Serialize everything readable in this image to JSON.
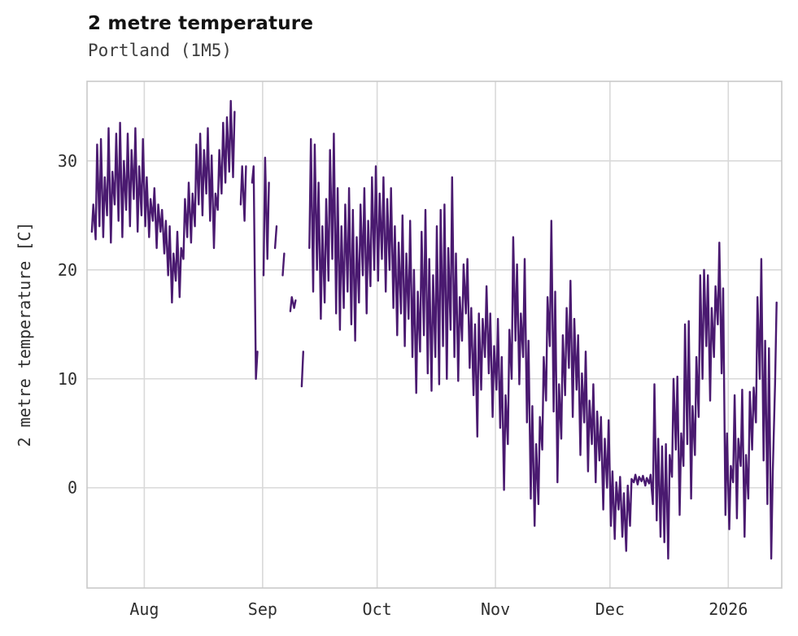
{
  "header": {
    "title": "2 metre temperature",
    "subtitle": "Portland (1M5)"
  },
  "chart_data": {
    "type": "line",
    "title": "2 metre temperature",
    "subtitle": "Portland (1M5)",
    "xlabel": "",
    "ylabel": "2 metre temperature [C]",
    "line_color": "#4a1a70",
    "grid": true,
    "legend": "none",
    "y_ticks": [
      0,
      10,
      20,
      30
    ],
    "ylim": [
      -9.2,
      37.3
    ],
    "xlim_days": [
      -1,
      181
    ],
    "x_ticks": {
      "positions_days": [
        14,
        45,
        75,
        106,
        136,
        167
      ],
      "labels": [
        "Aug",
        "Sep",
        "Oct",
        "Nov",
        "Dec",
        "2026"
      ]
    },
    "sampling": "two samples per day (daily min then daily max); index i maps to day i/2; null = data gap shown as broken line",
    "values": [
      23.5,
      26,
      22.8,
      31.5,
      24,
      32,
      23,
      28.5,
      25,
      33,
      22.5,
      29,
      26,
      32.5,
      24.5,
      33.5,
      23,
      30,
      25.5,
      32.5,
      24,
      31,
      26.5,
      33,
      23.5,
      29.5,
      25,
      32,
      24,
      28.5,
      23,
      26.5,
      24.5,
      27.5,
      22,
      26,
      23.5,
      25.5,
      21.5,
      24.5,
      19.5,
      24,
      17,
      21.5,
      19,
      23.5,
      17.5,
      22,
      21,
      26.5,
      23,
      28,
      22.5,
      27,
      24,
      31.5,
      26,
      32.5,
      25,
      31,
      27,
      33,
      24.5,
      30.5,
      22,
      27,
      25.5,
      31,
      27,
      33.5,
      28,
      34,
      29,
      35.5,
      28.5,
      34.5,
      null,
      null,
      26,
      29.5,
      24.5,
      29.5,
      null,
      null,
      28,
      29.5,
      10,
      12.5,
      null,
      null,
      19.5,
      30.3,
      21,
      28,
      null,
      null,
      22,
      24,
      null,
      null,
      19.5,
      21.5,
      null,
      null,
      16.2,
      17.5,
      16.5,
      17.2,
      null,
      null,
      9.3,
      12.5,
      null,
      null,
      22,
      32,
      18,
      31.5,
      20,
      28,
      15.5,
      24,
      17,
      26.5,
      19,
      31,
      21,
      32.5,
      16,
      27.5,
      14.5,
      24,
      16.5,
      26,
      18,
      27.5,
      15,
      25.5,
      13.5,
      23,
      17,
      26,
      19.5,
      27.5,
      16,
      24.5,
      18.5,
      28.5,
      20,
      29.5,
      19,
      27,
      21,
      28.5,
      18,
      26.5,
      20,
      27.5,
      16.5,
      24,
      14,
      22.5,
      16,
      25,
      13,
      21.5,
      15.5,
      24.5,
      12,
      20,
      8.7,
      18,
      12.5,
      23.5,
      14,
      25.5,
      10.5,
      21,
      8.9,
      19.5,
      12,
      24,
      9.5,
      25.5,
      13,
      26,
      10,
      22,
      14.5,
      28.5,
      12,
      21.5,
      9.8,
      17.5,
      13.5,
      20.5,
      16,
      21,
      11,
      16.5,
      8.5,
      15,
      4.7,
      16,
      9,
      15.5,
      12,
      18.5,
      10.5,
      16,
      6.5,
      13,
      9,
      15.5,
      5.5,
      12,
      -0.2,
      8.5,
      4,
      14.5,
      10,
      23,
      13.5,
      20.5,
      9.5,
      16,
      12,
      21,
      6,
      13.5,
      -1,
      7.5,
      -3.5,
      4,
      -1.5,
      6.5,
      3.5,
      12,
      8,
      17.5,
      13,
      24.5,
      7,
      18,
      0.5,
      9.5,
      4.5,
      14,
      8.5,
      16.5,
      11,
      19,
      6.5,
      15.5,
      9,
      14,
      3,
      10.5,
      6,
      12.5,
      1.5,
      8,
      4,
      9.5,
      0.5,
      7,
      2.5,
      6.5,
      -2,
      4.5,
      0,
      6.2,
      -3.5,
      1.5,
      -4.7,
      0.5,
      -2,
      1,
      -4.5,
      -0.5,
      -5.8,
      0.2,
      -3.5,
      0.8,
      0.5,
      1.2,
      0.3,
      1,
      0.6,
      1.1,
      0.2,
      0.9,
      0.4,
      1.2,
      -1.5,
      9.5,
      -3,
      4.5,
      -4.5,
      3.8,
      -5,
      4,
      -6.5,
      3,
      1,
      10,
      3.5,
      10.2,
      -2.5,
      5,
      2,
      15,
      4,
      15.3,
      -1,
      7.5,
      3,
      12,
      6.5,
      19.5,
      10,
      20,
      13,
      19.5,
      8,
      16.5,
      12,
      18.5,
      15,
      22.5,
      10.5,
      18.3,
      -2.5,
      5,
      -3.8,
      2,
      0.5,
      8.5,
      -2.8,
      4.5,
      2,
      9,
      -4.5,
      3,
      -1,
      8.8,
      3.5,
      9.2,
      6,
      17.5,
      10,
      21,
      2.5,
      13.5,
      -1.5,
      12.8,
      -6.5,
      1.5,
      9.5,
      17
    ]
  }
}
